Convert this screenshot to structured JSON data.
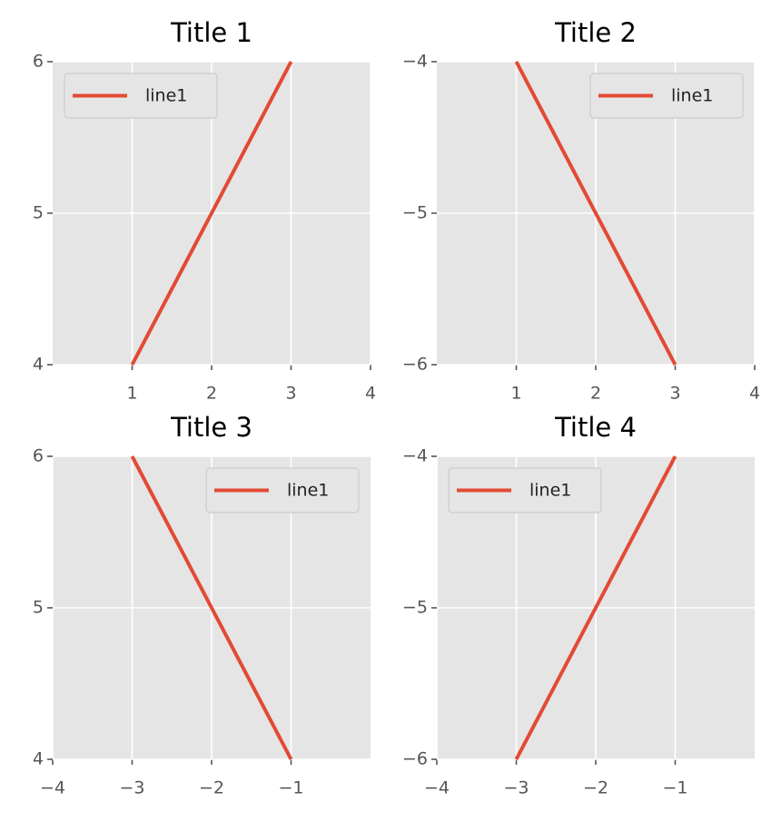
{
  "chart_data": [
    {
      "type": "line",
      "title": "Title 1",
      "x": [
        1,
        2,
        3
      ],
      "series": [
        {
          "name": "line1",
          "color": "#e24a33",
          "values": [
            4,
            5,
            6
          ]
        }
      ],
      "xlim": [
        0,
        4
      ],
      "xticks": [
        1,
        2,
        3,
        4
      ],
      "ylim": [
        4,
        6
      ],
      "yticks": [
        4,
        5,
        6
      ],
      "grid": true,
      "legend": "upper left"
    },
    {
      "type": "line",
      "title": "Title 2",
      "x": [
        1,
        2,
        3
      ],
      "series": [
        {
          "name": "line1",
          "color": "#e24a33",
          "values": [
            -4,
            -5,
            -6
          ]
        }
      ],
      "xlim": [
        0,
        4
      ],
      "xticks": [
        1,
        2,
        3,
        4
      ],
      "ylim": [
        -6,
        -4
      ],
      "yticks": [
        {
          "value": -6,
          "label": "−6"
        },
        {
          "value": -5,
          "label": "−5"
        },
        {
          "value": -4,
          "label": "−4"
        }
      ],
      "grid": true,
      "legend": "upper right"
    },
    {
      "type": "line",
      "title": "Title 3",
      "x": [
        -3,
        -2,
        -1
      ],
      "series": [
        {
          "name": "line1",
          "color": "#e24a33",
          "values": [
            6,
            5,
            4
          ]
        }
      ],
      "xlim": [
        -4,
        0
      ],
      "xticks": [
        {
          "value": -4,
          "label": "−4"
        },
        {
          "value": -3,
          "label": "−3"
        },
        {
          "value": -2,
          "label": "−2"
        },
        {
          "value": -1,
          "label": "−1"
        }
      ],
      "ylim": [
        4,
        6
      ],
      "yticks": [
        4,
        5,
        6
      ],
      "grid": true,
      "legend": "upper right"
    },
    {
      "type": "line",
      "title": "Title 4",
      "x": [
        -3,
        -2,
        -1
      ],
      "series": [
        {
          "name": "line1",
          "color": "#e24a33",
          "values": [
            -6,
            -5,
            -4
          ]
        }
      ],
      "xlim": [
        -4,
        0
      ],
      "xticks": [
        {
          "value": -4,
          "label": "−4"
        },
        {
          "value": -3,
          "label": "−3"
        },
        {
          "value": -2,
          "label": "−2"
        },
        {
          "value": -1,
          "label": "−1"
        }
      ],
      "ylim": [
        -6,
        -4
      ],
      "yticks": [
        {
          "value": -6,
          "label": "−6"
        },
        {
          "value": -5,
          "label": "−5"
        },
        {
          "value": -4,
          "label": "−4"
        }
      ],
      "grid": true,
      "legend": "upper left"
    }
  ]
}
